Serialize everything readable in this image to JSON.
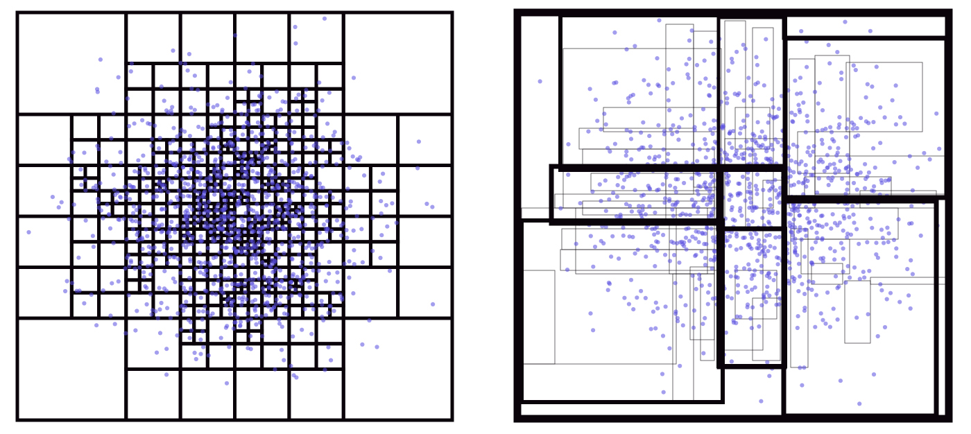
{
  "figure": {
    "panels": [
      {
        "id": "quadtree",
        "kind": "quadtree-partition"
      },
      {
        "id": "rtree",
        "kind": "r-tree-bounding-boxes"
      }
    ],
    "colors": {
      "point": "#5a4fe0",
      "line": "#0a040a",
      "background": "#ffffff"
    }
  }
}
